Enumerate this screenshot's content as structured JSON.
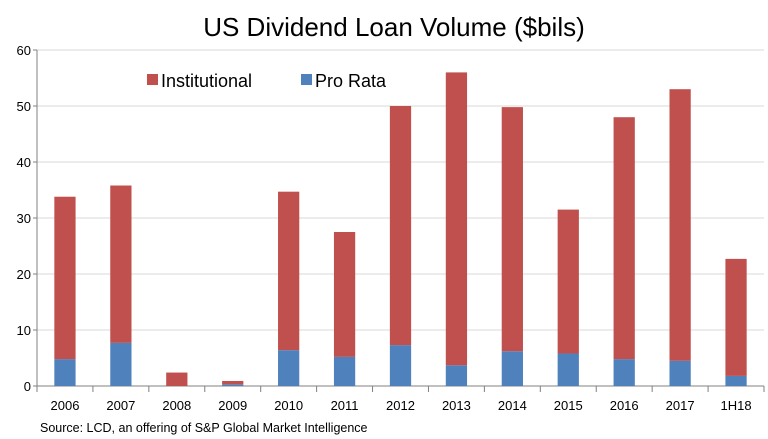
{
  "chart_data": {
    "type": "bar",
    "stacked": true,
    "title": "US Dividend Loan Volume ($bils)",
    "xlabel": "",
    "ylabel": "",
    "categories": [
      "2006",
      "2007",
      "2008",
      "2009",
      "2010",
      "2011",
      "2012",
      "2013",
      "2014",
      "2015",
      "2016",
      "2017",
      "1H18"
    ],
    "series": [
      {
        "name": "Pro Rata",
        "color": "#4F81BD",
        "values": [
          4.8,
          7.7,
          0.0,
          0.3,
          6.4,
          5.2,
          7.3,
          3.7,
          6.2,
          5.8,
          4.8,
          4.5,
          1.8
        ]
      },
      {
        "name": "Institutional",
        "color": "#C0504D",
        "values": [
          29.0,
          28.1,
          2.4,
          0.6,
          28.3,
          22.3,
          42.7,
          52.3,
          43.6,
          25.7,
          43.2,
          48.5,
          20.9
        ]
      }
    ],
    "ylim": [
      0,
      60
    ],
    "yticks": [
      0,
      10,
      20,
      30,
      40,
      50,
      60
    ],
    "legend": {
      "position": "top-left",
      "entries": [
        "Institutional",
        "Pro Rata"
      ]
    },
    "grid": true,
    "source": "Source: LCD, an offering of S&P Global Market Intelligence"
  }
}
